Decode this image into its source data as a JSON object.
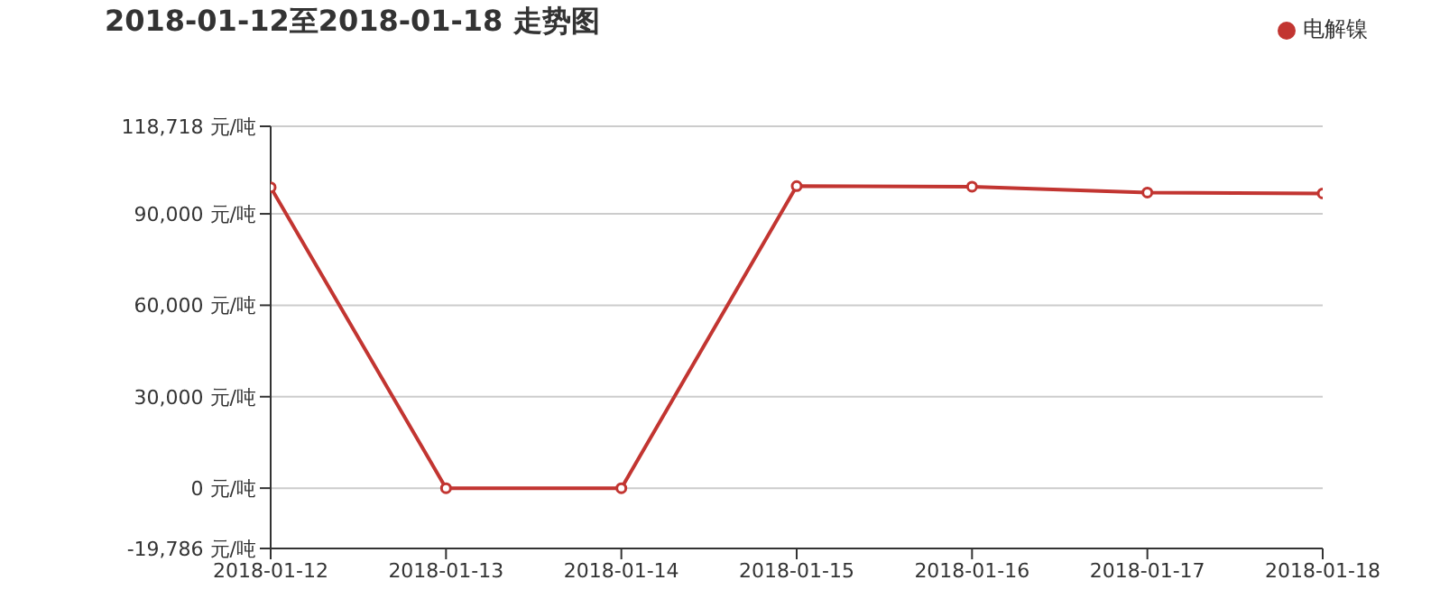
{
  "chart_data": {
    "type": "line",
    "title": "2018-01-12至2018-01-18 走势图",
    "categories": [
      "2018-01-12",
      "2018-01-13",
      "2018-01-14",
      "2018-01-15",
      "2018-01-16",
      "2018-01-17",
      "2018-01-18"
    ],
    "series": [
      {
        "name": "电解镍",
        "color": "#c23531",
        "values": [
          98700,
          0,
          0,
          99100,
          98900,
          97000,
          96700
        ]
      }
    ],
    "ylim": [
      -19786,
      118718
    ],
    "yticks": [
      {
        "value": -19786,
        "label": "-19,786 元/吨"
      },
      {
        "value": 0,
        "label": "0 元/吨"
      },
      {
        "value": 30000,
        "label": "30,000 元/吨"
      },
      {
        "value": 60000,
        "label": "60,000 元/吨"
      },
      {
        "value": 90000,
        "label": "90,000 元/吨"
      },
      {
        "value": 118718,
        "label": "118,718 元/吨"
      }
    ],
    "grid": "y",
    "legend": "top right",
    "marker": "circle",
    "line_style": "solid"
  }
}
